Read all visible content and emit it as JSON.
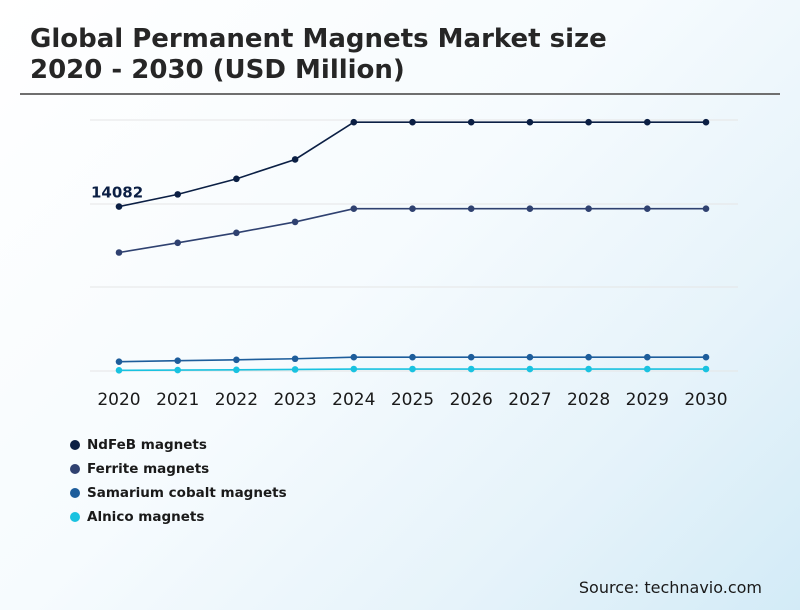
{
  "title_line1": "Global Permanent Magnets Market size",
  "title_line2": "2020 - 2030 (USD Million)",
  "source": "Source: technavio.com",
  "chart_data": {
    "type": "line",
    "title": "Global Permanent Magnets Market size 2020 - 2030 (USD Million)",
    "x": [
      "2020",
      "2021",
      "2022",
      "2023",
      "2024",
      "2025",
      "2026",
      "2027",
      "2028",
      "2029",
      "2030"
    ],
    "ylim": [
      0,
      21500
    ],
    "grid": true,
    "legend_position": "bottom-left",
    "annotation": {
      "series": 0,
      "index": 0,
      "label": "14082"
    },
    "series": [
      {
        "name": "NdFeB magnets",
        "color": "#0b1f44",
        "values": [
          14082,
          15130,
          16460,
          18120,
          21310,
          null,
          null,
          null,
          null,
          null,
          null
        ]
      },
      {
        "name": "Ferrite magnets",
        "color": "#2f4170",
        "values": [
          10150,
          10980,
          11840,
          12770,
          13900,
          13900,
          13900,
          13900,
          13900,
          13900,
          13900
        ]
      },
      {
        "name": "Samarium cobalt magnets",
        "color": "#1d5d9b",
        "values": [
          800,
          880,
          960,
          1050,
          1180,
          1180,
          1180,
          1180,
          1180,
          1180,
          1180
        ]
      },
      {
        "name": "Alnico magnets",
        "color": "#19c2e0",
        "values": [
          60,
          80,
          100,
          130,
          170,
          170,
          170,
          170,
          170,
          170,
          170
        ]
      }
    ],
    "flat_line_top": {
      "series": 0,
      "values": [
        null,
        null,
        null,
        null,
        21310,
        21310,
        21310,
        21310,
        21310,
        21310,
        21310
      ]
    }
  }
}
